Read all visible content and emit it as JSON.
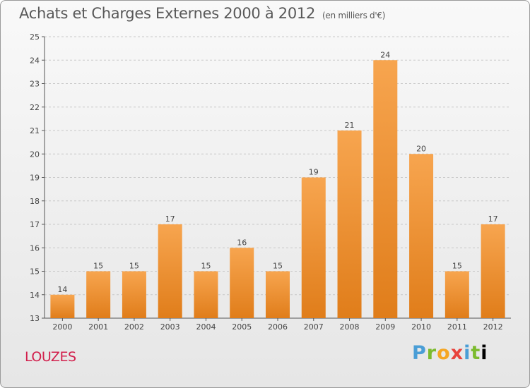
{
  "header": {
    "title": "Achats et Charges Externes 2000 à 2012",
    "unit": "(en milliers d'€)"
  },
  "footer": {
    "place": "LOUZES",
    "logo_text": "Proxiti"
  },
  "colors": {
    "bar_top": "#f7a54f",
    "bar_bottom": "#e07d1a",
    "axis": "#555555",
    "grid": "#c8c8c8",
    "place": "#d2204d"
  },
  "chart_data": {
    "type": "bar",
    "title": "Achats et Charges Externes 2000 à 2012",
    "subtitle": "(en milliers d'€)",
    "xlabel": "",
    "ylabel": "",
    "categories": [
      "2000",
      "2001",
      "2002",
      "2003",
      "2004",
      "2005",
      "2006",
      "2007",
      "2008",
      "2009",
      "2010",
      "2011",
      "2012"
    ],
    "values": [
      14,
      15,
      15,
      17,
      15,
      16,
      15,
      19,
      21,
      24,
      20,
      15,
      17
    ],
    "ylim": [
      13,
      25
    ],
    "yticks": [
      13,
      14,
      15,
      16,
      17,
      18,
      19,
      20,
      21,
      22,
      23,
      24,
      25
    ],
    "grid": "horizontal dashed",
    "legend": "none"
  }
}
